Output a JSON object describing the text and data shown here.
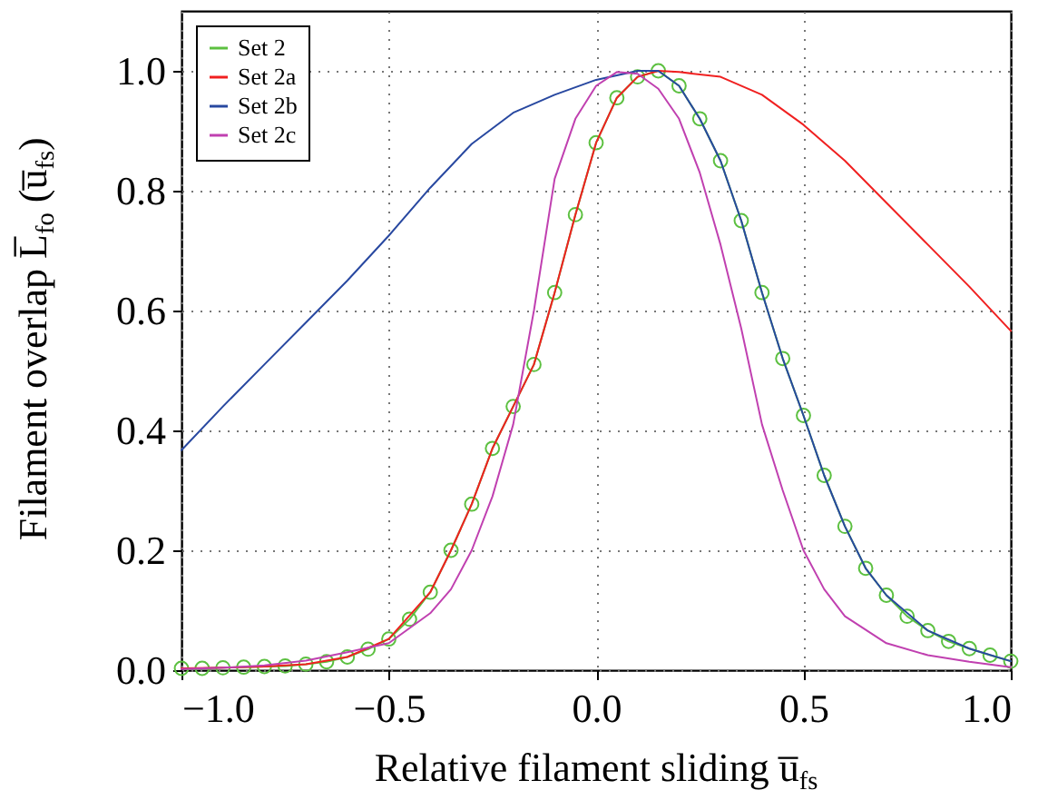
{
  "chart_data": {
    "type": "line",
    "xlabel": "Relative filament sliding u̅$_{fs}$",
    "ylabel": "Filament overlap L̅$_{fo}$ (u̅$_{fs}$)",
    "xlim": [
      -1,
      1
    ],
    "ylim": [
      0,
      1.1
    ],
    "xticks": [
      {
        "value": -1,
        "label": "−1.0"
      },
      {
        "value": -0.5,
        "label": "−0.5"
      },
      {
        "value": 0,
        "label": "0.0"
      },
      {
        "value": 0.5,
        "label": "0.5"
      },
      {
        "value": 1,
        "label": "1.0"
      }
    ],
    "yticks": [
      {
        "value": 0,
        "label": "0.0"
      },
      {
        "value": 0.2,
        "label": "0.2"
      },
      {
        "value": 0.4,
        "label": "0.4"
      },
      {
        "value": 0.6,
        "label": "0.6"
      },
      {
        "value": 0.8,
        "label": "0.8"
      },
      {
        "value": 1,
        "label": "1.0"
      }
    ],
    "grid": true,
    "legend": "top left",
    "series": [
      {
        "name": "Set 2",
        "color": "#5cc040",
        "marker": "circle",
        "x": [
          -1,
          -0.95,
          -0.9,
          -0.85,
          -0.8,
          -0.75,
          -0.7,
          -0.65,
          -0.6,
          -0.55,
          -0.5,
          -0.45,
          -0.4,
          -0.35,
          -0.3,
          -0.25,
          -0.2,
          -0.15,
          -0.1,
          -0.05,
          0,
          0.05,
          0.1,
          0.15,
          0.2,
          0.25,
          0.3,
          0.35,
          0.4,
          0.45,
          0.5,
          0.55,
          0.6,
          0.65,
          0.7,
          0.75,
          0.8,
          0.85,
          0.9,
          0.95,
          1
        ],
        "values": [
          0.003,
          0.003,
          0.004,
          0.005,
          0.006,
          0.007,
          0.01,
          0.014,
          0.022,
          0.035,
          0.052,
          0.085,
          0.13,
          0.2,
          0.277,
          0.37,
          0.44,
          0.51,
          0.63,
          0.76,
          0.88,
          0.955,
          0.99,
          1.0,
          0.975,
          0.92,
          0.85,
          0.75,
          0.63,
          0.52,
          0.425,
          0.325,
          0.24,
          0.17,
          0.125,
          0.09,
          0.066,
          0.048,
          0.036,
          0.025,
          0.015
        ]
      },
      {
        "name": "Set 2a",
        "color": "#f02020",
        "x": [
          -1,
          -0.9,
          -0.8,
          -0.7,
          -0.6,
          -0.5,
          -0.4,
          -0.35,
          -0.3,
          -0.25,
          -0.2,
          -0.15,
          -0.1,
          -0.05,
          0,
          0.05,
          0.1,
          0.15,
          0.2,
          0.3,
          0.4,
          0.5,
          0.6,
          0.7,
          0.8,
          0.9,
          1
        ],
        "values": [
          0.003,
          0.004,
          0.006,
          0.01,
          0.022,
          0.052,
          0.13,
          0.2,
          0.277,
          0.37,
          0.44,
          0.51,
          0.63,
          0.76,
          0.88,
          0.955,
          0.99,
          1.0,
          0.998,
          0.99,
          0.96,
          0.91,
          0.85,
          0.78,
          0.71,
          0.64,
          0.566
        ]
      },
      {
        "name": "Set 2b",
        "color": "#2848a0",
        "x": [
          -1,
          -0.9,
          -0.8,
          -0.7,
          -0.6,
          -0.5,
          -0.4,
          -0.3,
          -0.2,
          -0.1,
          0,
          0.1,
          0.15,
          0.2,
          0.25,
          0.3,
          0.35,
          0.4,
          0.45,
          0.5,
          0.55,
          0.6,
          0.65,
          0.7,
          0.8,
          0.9,
          1
        ],
        "values": [
          0.367,
          0.44,
          0.51,
          0.58,
          0.65,
          0.725,
          0.805,
          0.878,
          0.93,
          0.96,
          0.985,
          1.0,
          1.0,
          0.975,
          0.92,
          0.85,
          0.75,
          0.63,
          0.52,
          0.425,
          0.325,
          0.24,
          0.17,
          0.125,
          0.066,
          0.036,
          0.015
        ]
      },
      {
        "name": "Set 2c",
        "color": "#c040b0",
        "x": [
          -1,
          -0.9,
          -0.8,
          -0.7,
          -0.6,
          -0.5,
          -0.4,
          -0.35,
          -0.3,
          -0.25,
          -0.2,
          -0.15,
          -0.1,
          -0.05,
          0,
          0.05,
          0.1,
          0.15,
          0.2,
          0.25,
          0.3,
          0.35,
          0.4,
          0.45,
          0.5,
          0.55,
          0.6,
          0.7,
          0.8,
          0.9,
          1
        ],
        "values": [
          0.002,
          0.004,
          0.008,
          0.016,
          0.03,
          0.045,
          0.095,
          0.135,
          0.2,
          0.29,
          0.41,
          0.6,
          0.82,
          0.92,
          0.975,
          0.998,
          0.995,
          0.97,
          0.92,
          0.83,
          0.71,
          0.57,
          0.41,
          0.3,
          0.2,
          0.135,
          0.09,
          0.045,
          0.025,
          0.014,
          0.005
        ]
      }
    ]
  }
}
